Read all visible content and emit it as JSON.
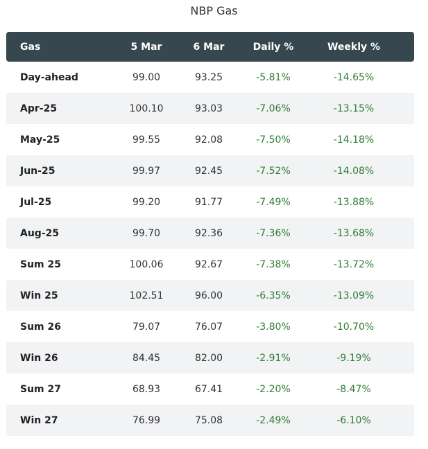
{
  "title": "NBP Gas",
  "table": {
    "headers": [
      "Gas",
      "5 Mar",
      "6 Mar",
      "Daily %",
      "Weekly %"
    ],
    "rows": [
      {
        "name": "Day-ahead",
        "mar5": "99.00",
        "mar6": "93.25",
        "daily": "-5.81%",
        "weekly": "-14.65%"
      },
      {
        "name": "Apr-25",
        "mar5": "100.10",
        "mar6": "93.03",
        "daily": "-7.06%",
        "weekly": "-13.15%"
      },
      {
        "name": "May-25",
        "mar5": "99.55",
        "mar6": "92.08",
        "daily": "-7.50%",
        "weekly": "-14.18%"
      },
      {
        "name": "Jun-25",
        "mar5": "99.97",
        "mar6": "92.45",
        "daily": "-7.52%",
        "weekly": "-14.08%"
      },
      {
        "name": "Jul-25",
        "mar5": "99.20",
        "mar6": "91.77",
        "daily": "-7.49%",
        "weekly": "-13.88%"
      },
      {
        "name": "Aug-25",
        "mar5": "99.70",
        "mar6": "92.36",
        "daily": "-7.36%",
        "weekly": "-13.68%"
      },
      {
        "name": "Sum 25",
        "mar5": "100.06",
        "mar6": "92.67",
        "daily": "-7.38%",
        "weekly": "-13.72%"
      },
      {
        "name": "Win 25",
        "mar5": "102.51",
        "mar6": "96.00",
        "daily": "-6.35%",
        "weekly": "-13.09%"
      },
      {
        "name": "Sum 26",
        "mar5": "79.07",
        "mar6": "76.07",
        "daily": "-3.80%",
        "weekly": "-10.70%"
      },
      {
        "name": "Win 26",
        "mar5": "84.45",
        "mar6": "82.00",
        "daily": "-2.91%",
        "weekly": "-9.19%"
      },
      {
        "name": "Sum 27",
        "mar5": "68.93",
        "mar6": "67.41",
        "daily": "-2.20%",
        "weekly": "-8.47%"
      },
      {
        "name": "Win 27",
        "mar5": "76.99",
        "mar6": "75.08",
        "daily": "-2.49%",
        "weekly": "-6.10%"
      }
    ]
  },
  "colors": {
    "header_bg": "#37474f",
    "stripe_bg": "#f2f3f5",
    "negative_text": "#2e7d32"
  }
}
